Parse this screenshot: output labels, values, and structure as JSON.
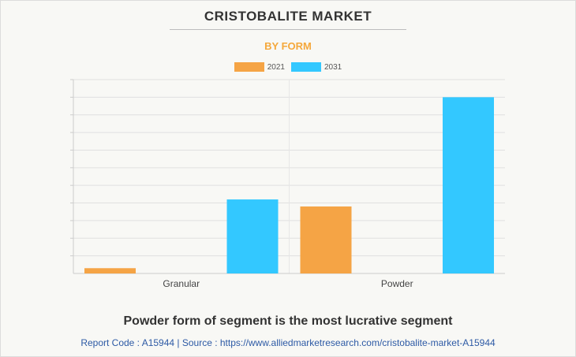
{
  "header": {
    "title": "CRISTOBALITE MARKET",
    "subtitle": "BY FORM"
  },
  "chart_data": {
    "type": "bar",
    "categories": [
      "Granular",
      "Powder"
    ],
    "series": [
      {
        "name": "2021",
        "color": "#f5a445",
        "values": [
          0.6,
          7.6
        ]
      },
      {
        "name": "2031",
        "color": "#33c8ff",
        "values": [
          8.4,
          20.0
        ]
      }
    ],
    "ylim": [
      0,
      22
    ],
    "grid": true,
    "legend_position": "top-center"
  },
  "footer": {
    "caption": "Powder form of segment is the most lucrative segment",
    "source": "Report Code : A15944  |  Source : https://www.alliedmarketresearch.com/cristobalite-market-A15944"
  }
}
